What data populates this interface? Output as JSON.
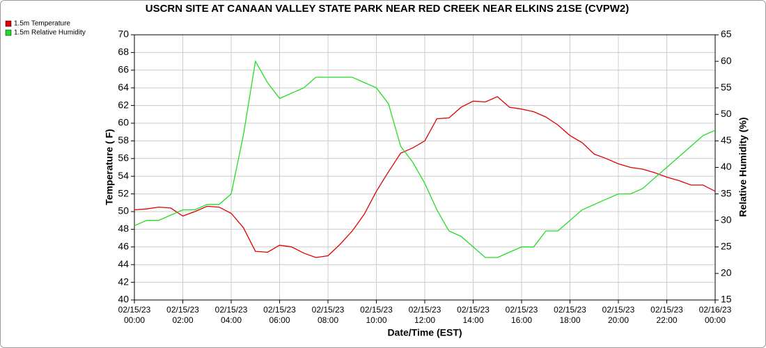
{
  "chart_data": {
    "type": "line",
    "title": "USCRN SITE AT CANAAN VALLEY STATE PARK NEAR RED CREEK NEAR ELKINS 21SE (CVPW2)",
    "x_label": "Date/Time (EST)",
    "y_label": "Temperature ( F)",
    "y2_label": "Relative Humidity (%)",
    "x": [
      "02/15/23 00:00",
      "02/15/23 00:30",
      "02/15/23 01:00",
      "02/15/23 01:30",
      "02/15/23 02:00",
      "02/15/23 02:30",
      "02/15/23 03:00",
      "02/15/23 03:30",
      "02/15/23 04:00",
      "02/15/23 04:30",
      "02/15/23 05:00",
      "02/15/23 05:30",
      "02/15/23 06:00",
      "02/15/23 06:30",
      "02/15/23 07:00",
      "02/15/23 07:30",
      "02/15/23 08:00",
      "02/15/23 08:30",
      "02/15/23 09:00",
      "02/15/23 09:30",
      "02/15/23 10:00",
      "02/15/23 10:30",
      "02/15/23 11:00",
      "02/15/23 11:30",
      "02/15/23 12:00",
      "02/15/23 12:30",
      "02/15/23 13:00",
      "02/15/23 13:30",
      "02/15/23 14:00",
      "02/15/23 14:30",
      "02/15/23 15:00",
      "02/15/23 15:30",
      "02/15/23 16:00",
      "02/15/23 16:30",
      "02/15/23 17:00",
      "02/15/23 17:30",
      "02/15/23 18:00",
      "02/15/23 18:30",
      "02/15/23 19:00",
      "02/15/23 19:30",
      "02/15/23 20:00",
      "02/15/23 20:30",
      "02/15/23 21:00",
      "02/15/23 21:30",
      "02/15/23 22:00",
      "02/15/23 22:30",
      "02/15/23 23:00",
      "02/15/23 23:30",
      "02/16/23 00:00"
    ],
    "series": [
      {
        "name": "1.5m Temperature",
        "color": "#e00000",
        "axis": "y",
        "values": [
          50.2,
          50.3,
          50.5,
          50.4,
          49.5,
          50.0,
          50.6,
          50.5,
          49.8,
          48.2,
          45.5,
          45.4,
          46.2,
          46.0,
          45.3,
          44.8,
          45.0,
          46.3,
          47.8,
          49.7,
          52.3,
          54.5,
          56.6,
          57.2,
          58.0,
          60.5,
          60.6,
          61.8,
          62.5,
          62.4,
          63.0,
          61.8,
          61.6,
          61.3,
          60.7,
          59.8,
          58.6,
          57.8,
          56.5,
          56.0,
          55.4,
          55.0,
          54.8,
          54.4,
          53.9,
          53.5,
          53.0,
          53.0,
          52.3
        ]
      },
      {
        "name": "1.5m Relative Humidity",
        "color": "#22dd22",
        "axis": "y2",
        "values": [
          29,
          30,
          30,
          31,
          32,
          32,
          33,
          33,
          35,
          46,
          60,
          56,
          53,
          54,
          55,
          57,
          57,
          57,
          57,
          56,
          55,
          52,
          44,
          41,
          37,
          32,
          28,
          27,
          25,
          23,
          23,
          24,
          25,
          25,
          28,
          28,
          30,
          32,
          33,
          34,
          35,
          35,
          36,
          38,
          40,
          42,
          44,
          46,
          47
        ]
      }
    ],
    "xlim": [
      "02/15/23 00:00",
      "02/16/23 00:00"
    ],
    "xticks": [
      "02/15/23 00:00",
      "02/15/23 02:00",
      "02/15/23 04:00",
      "02/15/23 06:00",
      "02/15/23 08:00",
      "02/15/23 10:00",
      "02/15/23 12:00",
      "02/15/23 14:00",
      "02/15/23 16:00",
      "02/15/23 18:00",
      "02/15/23 20:00",
      "02/15/23 22:00",
      "02/16/23 00:00"
    ],
    "ylim": [
      40,
      70
    ],
    "yticks": [
      40,
      42,
      44,
      46,
      48,
      50,
      52,
      54,
      56,
      58,
      60,
      62,
      64,
      66,
      68,
      70
    ],
    "y2lim": [
      15,
      65
    ],
    "y2ticks": [
      15,
      20,
      25,
      30,
      35,
      40,
      45,
      50,
      55,
      60,
      65
    ],
    "grid": true,
    "legend": "top-left"
  }
}
